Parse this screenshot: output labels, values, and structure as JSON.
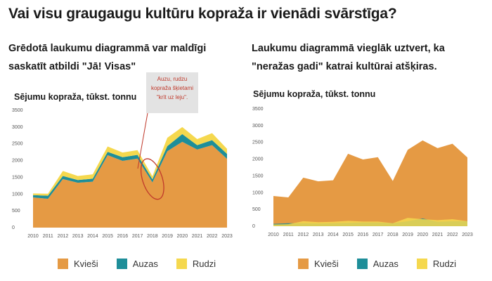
{
  "title": "Vai visu graugaugu kultūru kopraža ir vienādi svārstīga?",
  "colors": {
    "kviesi": "#E59A44",
    "auzas": "#1E8E99",
    "rudzi": "#F5D84E",
    "annotation": "#C0392B",
    "note_bg": "#E3E3E3"
  },
  "left": {
    "subtitle": "Grēdotā laukumu diagrammā var maldīgi saskatīt atbildi \"Jā! Visas\"",
    "note": "Auzu, rudzu kopraža šķietami \"krīt uz leju\"."
  },
  "right": {
    "subtitle": "Laukumu diagrammā vieglāk uztvert, ka \"neražas gadi\" katrai kultūrai atšķiras."
  },
  "legend": [
    {
      "label": "Kvieši",
      "color": "#E59A44"
    },
    {
      "label": "Auzas",
      "color": "#1E8E99"
    },
    {
      "label": "Rudzi",
      "color": "#F5D84E"
    }
  ],
  "chart_data": [
    {
      "type": "area",
      "stacked": true,
      "ylabel": "Sējumu kopraža, tūkst. tonnu",
      "ylim": [
        0,
        3500
      ],
      "yticks": [
        0,
        500,
        1000,
        1500,
        2000,
        2500,
        3000,
        3500
      ],
      "x": [
        "2010",
        "2011",
        "2012",
        "2013",
        "2014",
        "2015",
        "2016",
        "2017",
        "2018",
        "2019",
        "2020",
        "2021",
        "2022",
        "2023"
      ],
      "series": [
        {
          "name": "Kvieši",
          "values": [
            900,
            860,
            1450,
            1340,
            1370,
            2160,
            1990,
            2060,
            1350,
            2280,
            2560,
            2330,
            2460,
            2050
          ]
        },
        {
          "name": "Auzas",
          "values": [
            70,
            90,
            90,
            80,
            90,
            100,
            110,
            110,
            90,
            150,
            230,
            130,
            150,
            150
          ]
        },
        {
          "name": "Rudzi",
          "values": [
            50,
            60,
            150,
            120,
            130,
            160,
            140,
            140,
            90,
            250,
            210,
            180,
            210,
            150
          ]
        }
      ],
      "annotation": "Auzu, rudzu kopraža šķietami \"krīt uz leju\"."
    },
    {
      "type": "area",
      "stacked": false,
      "ylabel": "Sējumu kopraža, tūkst. tonnu",
      "ylim": [
        0,
        3500
      ],
      "yticks": [
        0,
        500,
        1000,
        1500,
        2000,
        2500,
        3000,
        3500
      ],
      "x": [
        "2010",
        "2011",
        "2012",
        "2013",
        "2014",
        "2015",
        "2016",
        "2017",
        "2018",
        "2019",
        "2020",
        "2021",
        "2022",
        "2023"
      ],
      "series": [
        {
          "name": "Kvieši",
          "values": [
            900,
            860,
            1450,
            1340,
            1370,
            2160,
            1990,
            2060,
            1350,
            2280,
            2560,
            2330,
            2460,
            2050
          ]
        },
        {
          "name": "Auzas",
          "values": [
            70,
            90,
            90,
            80,
            90,
            100,
            110,
            110,
            90,
            150,
            230,
            130,
            150,
            150
          ]
        },
        {
          "name": "Rudzi",
          "values": [
            50,
            60,
            150,
            120,
            130,
            160,
            140,
            140,
            90,
            250,
            210,
            180,
            210,
            150
          ]
        }
      ]
    }
  ]
}
